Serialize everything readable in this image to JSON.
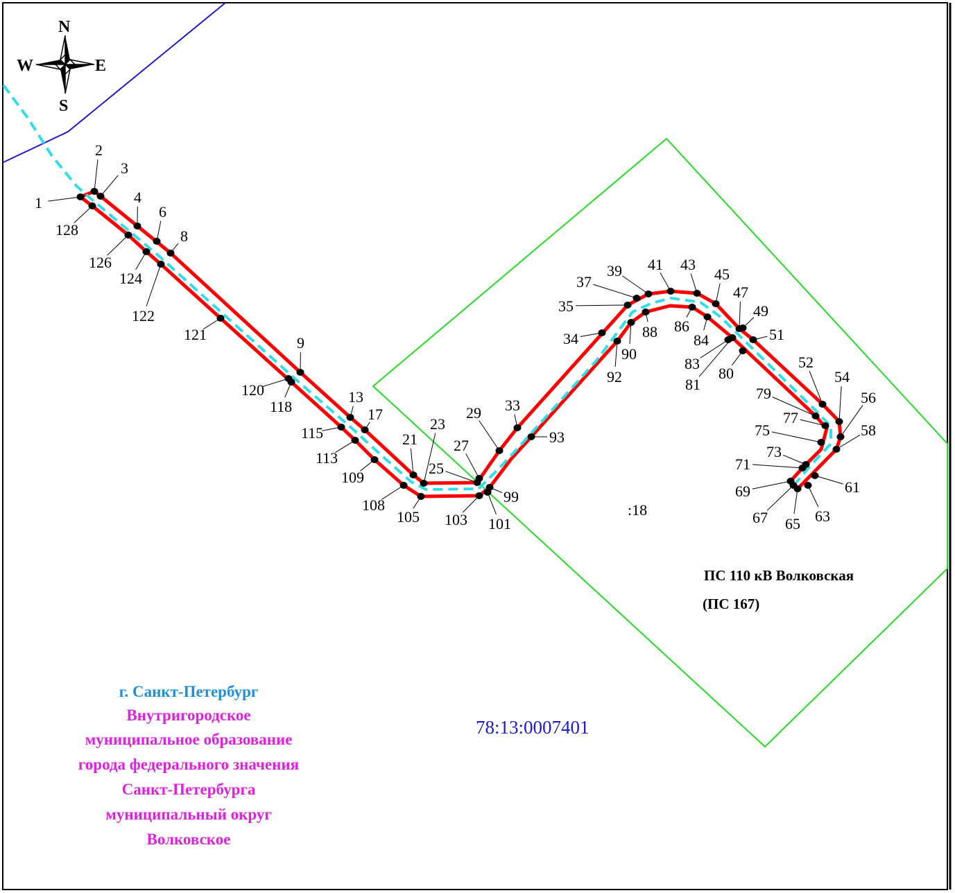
{
  "compass": {
    "n": "N",
    "e": "E",
    "s": "S",
    "w": "W"
  },
  "parcel_label": ":18",
  "substation": {
    "line1": "ПС 110 кВ Волковская",
    "line2": "(ПС 167)"
  },
  "quarter": {
    "text": "78:13:0007401",
    "color": "#1a1acc"
  },
  "admin": {
    "city": "г. Санкт-Петербург",
    "city_color": "#1e90d8",
    "lines": [
      "Внутригородское",
      "муниципальное образование",
      "города федерального значения",
      "Санкт-Петербурга",
      "муниципальный округ",
      "Волковское"
    ],
    "lines_color": "#e020e0"
  },
  "colors": {
    "zone_outline": "#ff0000",
    "cable_axis": "#33dde8",
    "parcel_outline": "#22dd22",
    "boundary": "#1a1acc",
    "point": "#000000"
  },
  "points": [
    "1",
    "2",
    "3",
    "4",
    "6",
    "8",
    "9",
    "13",
    "17",
    "21",
    "23",
    "25",
    "27",
    "29",
    "33",
    "34",
    "35",
    "37",
    "39",
    "41",
    "43",
    "45",
    "47",
    "49",
    "51",
    "52",
    "54",
    "56",
    "58",
    "61",
    "63",
    "65",
    "67",
    "69",
    "71",
    "73",
    "75",
    "77",
    "79",
    "80",
    "81",
    "83",
    "84",
    "86",
    "88",
    "90",
    "92",
    "93",
    "99",
    "101",
    "103",
    "105",
    "108",
    "109",
    "113",
    "115",
    "118",
    "120",
    "121",
    "122",
    "124",
    "126",
    "128"
  ]
}
